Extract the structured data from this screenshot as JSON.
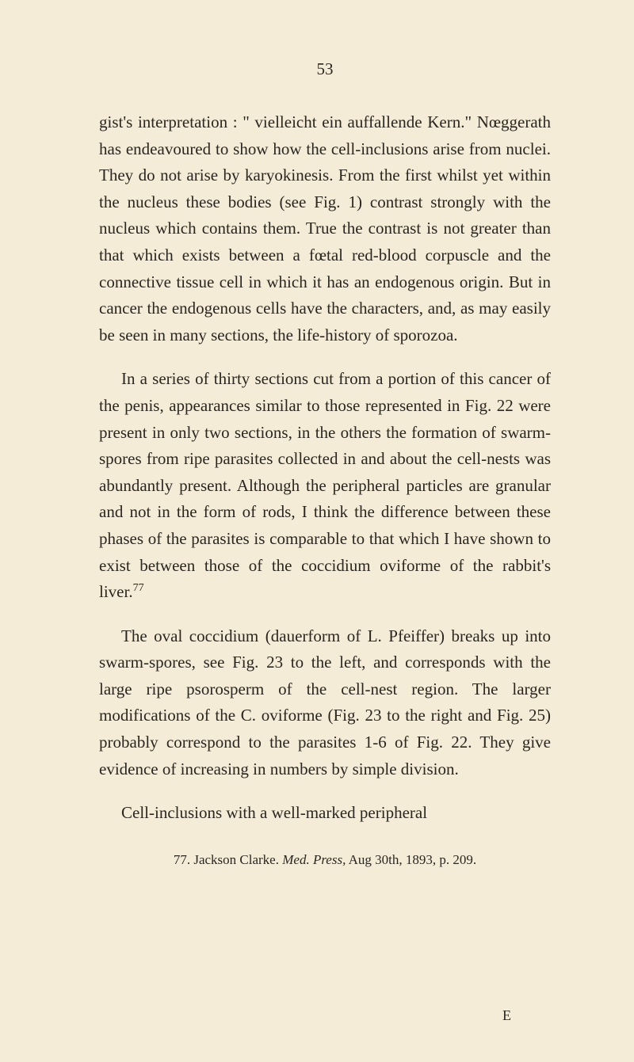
{
  "page_number": "53",
  "paragraphs": [
    {
      "text": "gist's interpretation : \" vielleicht ein auffallende Kern.\" Nœggerath has endeavoured to show how the cell-inclusions arise from nuclei. They do not arise by karyokinesis. From the first whilst yet within the nucleus these bodies (see Fig. 1) contrast strongly with the nucleus which contains them. True the contrast is not greater than that which exists between a fœtal red-blood corpuscle and the connective tissue cell in which it has an endogenous origin. But in cancer the endogenous cells have the characters, and, as may easily be seen in many sections, the life-history of sporozoa.",
      "indent": false
    },
    {
      "text": "In a series of thirty sections cut from a portion of this cancer of the penis, appearances similar to those represented in Fig. 22 were present in only two sections, in the others the formation of swarm-spores from ripe parasites collected in and about the cell-nests was abundantly present. Although the peripheral particles are granular and not in the form of rods, I think the difference between these phases of the parasites is comparable to that which I have shown to exist between those of the coccidium oviforme of the rabbit's liver.",
      "indent": true,
      "superscript": "77"
    },
    {
      "text": "The oval coccidium (dauerform of L. Pfeiffer) breaks up into swarm-spores, see Fig. 23 to the left, and corresponds with the large ripe psorosperm of the cell-nest region. The larger modifications of the C. oviforme (Fig. 23 to the right and Fig. 25) probably correspond to the parasites 1-6 of Fig. 22. They give evidence of increasing in numbers by simple division.",
      "indent": true
    },
    {
      "text": "Cell-inclusions with a well-marked peripheral",
      "indent": true
    }
  ],
  "footnote": {
    "number": "77.",
    "author": "Jackson Clarke.",
    "journal": "Med. Press,",
    "details": "Aug 30th, 1893, p. 209."
  },
  "page_signature": "E"
}
